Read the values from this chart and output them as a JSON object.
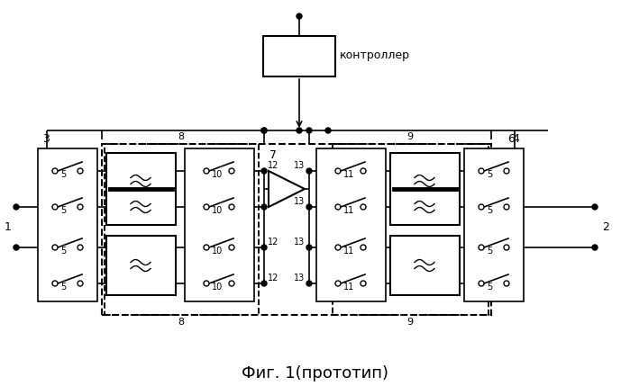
{
  "title": "Фиг. 1(прототип)",
  "title_fontsize": 13,
  "controller_label": "контроллер",
  "label_6": "6",
  "label_3": "3",
  "label_4": "4",
  "label_1": "1",
  "label_2": "2",
  "label_5": "5",
  "label_7": "7",
  "label_8": "8",
  "label_9": "9",
  "label_10": "10",
  "label_11": "11",
  "label_12": "12",
  "label_13": "13",
  "bg_color": "#ffffff",
  "line_color": "#000000"
}
